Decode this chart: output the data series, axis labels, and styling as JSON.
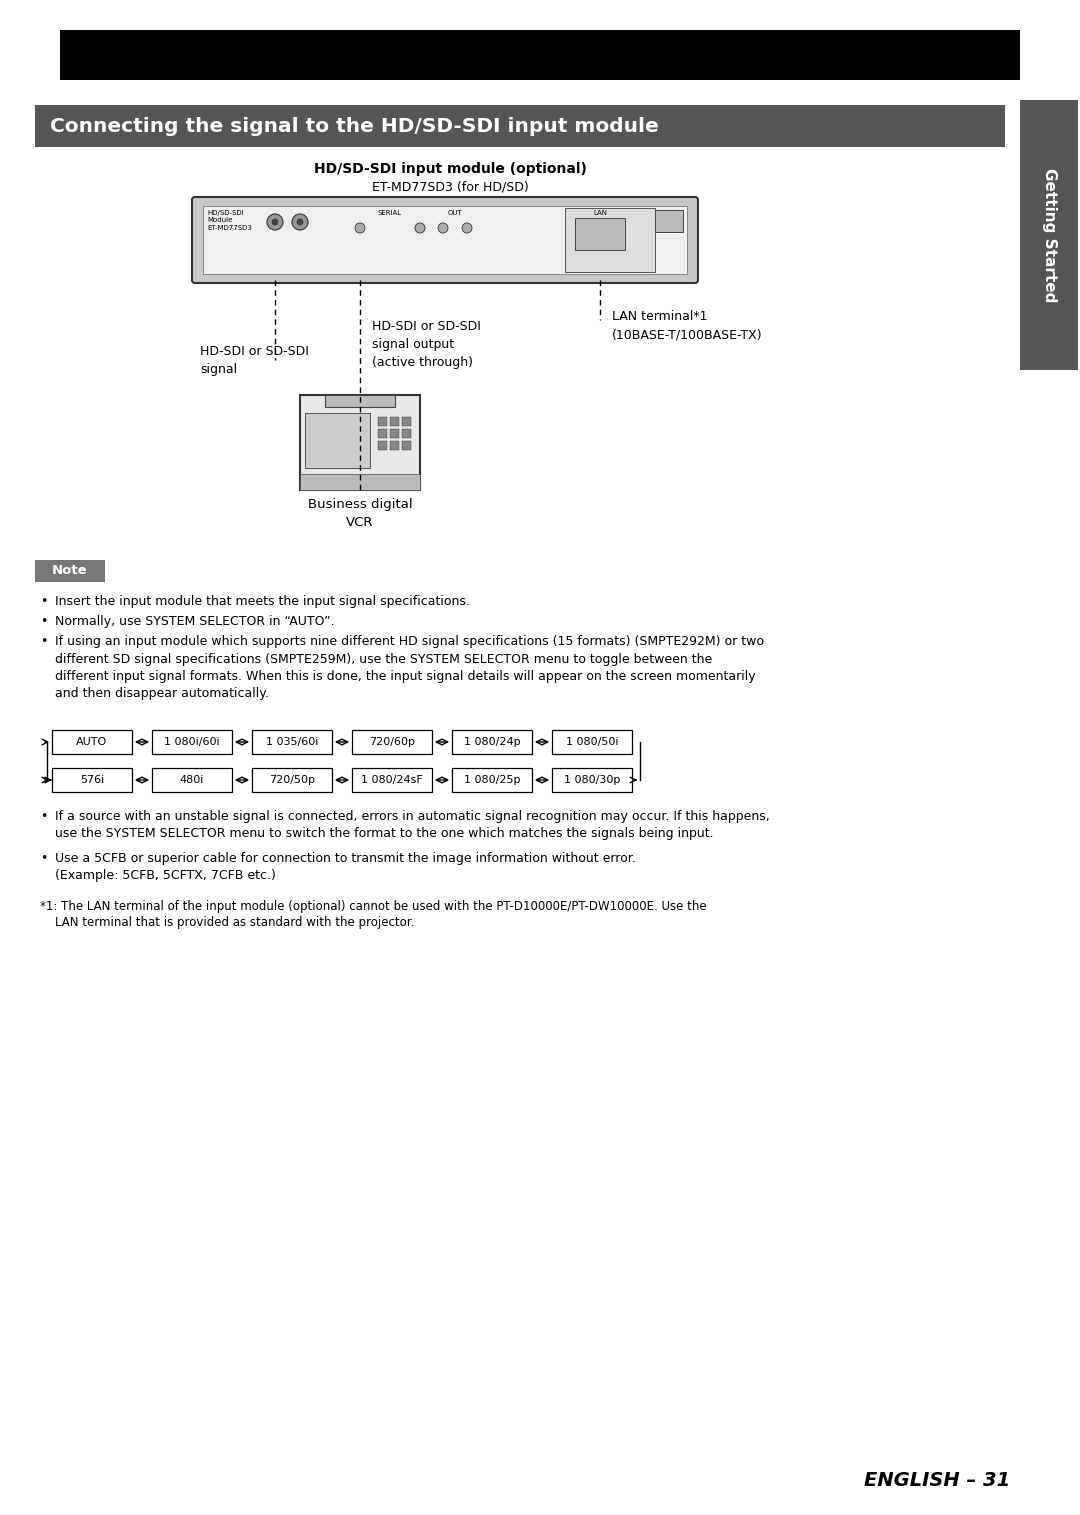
{
  "title_bar_color": "#000000",
  "section_bar_color": "#555555",
  "section_title": "Connecting the signal to the HD/SD-SDI input module",
  "section_title_color": "#ffffff",
  "note_bg_color": "#777777",
  "note_text_color": "#ffffff",
  "diagram_title_bold": "HD/SD-SDI input module (optional)",
  "diagram_title_normal": "ET-MD77SD3 (for HD/SD)",
  "lan_label": "LAN terminal*1\n(10BASE-T/100BASE-TX)",
  "hd_sdi_signal_label": "HD-SDI or SD-SDI\nsignal",
  "hd_sdi_output_label": "HD-SDI or SD-SDI\nsignal output\n(active through)",
  "vcr_label": "Business digital\nVCR",
  "note_bullet1": "Insert the input module that meets the input signal specifications.",
  "note_bullet2": "Normally, use SYSTEM SELECTOR in “AUTO”.",
  "note_bullet3": "If using an input module which supports nine different HD signal specifications (15 formats) (SMPTE292M) or two\ndifferent SD signal specifications (SMPTE259M), use the SYSTEM SELECTOR menu to toggle between the\ndifferent input signal formats. When this is done, the input signal details will appear on the screen momentarily\nand then disappear automatically.",
  "note_bullet4": "If a source with an unstable signal is connected, errors in automatic signal recognition may occur. If this happens,\nuse the SYSTEM SELECTOR menu to switch the format to the one which matches the signals being input.",
  "note_bullet5": "Use a 5CFB or superior cable for connection to transmit the image information without error.\n(Example: 5CFB, 5CFTX, 7CFB etc.)",
  "footnote1": "*1: The LAN terminal of the input module (optional) cannot be used with the PT-D10000E/PT-DW10000E. Use the",
  "footnote2": "    LAN terminal that is provided as standard with the projector.",
  "page_label": "ENGLISH – 31",
  "side_tab_text": "Getting Started",
  "row1_labels": [
    "AUTO",
    "1 080i/60i",
    "1 035/60i",
    "720/60p",
    "1 080/24p",
    "1 080/50i"
  ],
  "row2_labels": [
    "576i",
    "480i",
    "720/50p",
    "1 080/24sF",
    "1 080/25p",
    "1 080/30p"
  ],
  "bg_color": "#ffffff",
  "text_color": "#000000"
}
